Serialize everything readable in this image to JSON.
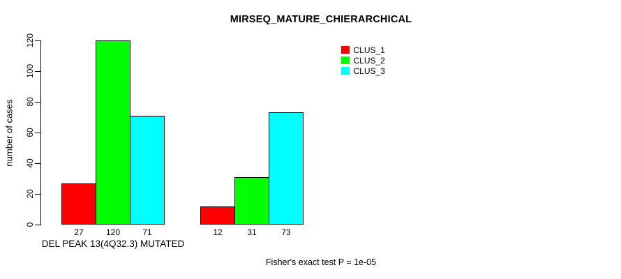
{
  "chart_data": {
    "type": "bar",
    "title": "MIRSEQ_MATURE_CHIERARCHICAL",
    "xlabel": "",
    "ylabel": "number of cases",
    "ylim": [
      0,
      120
    ],
    "yticks": [
      0,
      20,
      40,
      60,
      80,
      100,
      120
    ],
    "grid": false,
    "legend_position": "top-right",
    "bar_border_color": "#000000",
    "background_color": "#ffffff",
    "series": [
      {
        "name": "CLUS_1",
        "color": "#ff0000",
        "values": [
          27,
          12
        ]
      },
      {
        "name": "CLUS_2",
        "color": "#00ff00",
        "values": [
          120,
          31
        ]
      },
      {
        "name": "CLUS_3",
        "color": "#00ffff",
        "values": [
          71,
          73
        ]
      }
    ],
    "groups": [
      {
        "label": "DEL PEAK 13(4Q32.3) MUTATED",
        "values": [
          27,
          120,
          71
        ]
      },
      {
        "label": "",
        "values": [
          12,
          31,
          73
        ]
      }
    ],
    "bar_value_labels": [
      [
        "27",
        "120",
        "71"
      ],
      [
        "12",
        "31",
        "73"
      ]
    ],
    "annotation": "Fisher's exact test P = 1e-05"
  }
}
